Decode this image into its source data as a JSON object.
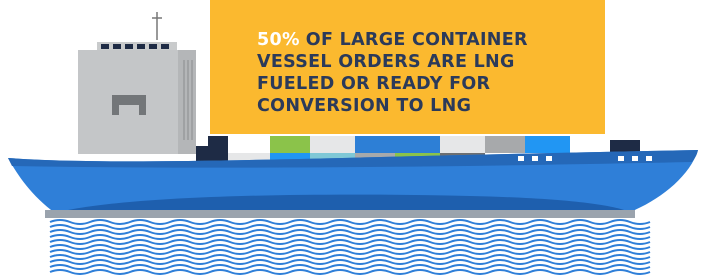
{
  "headline": {
    "highlight": "50%",
    "lines": [
      "OF LARGE CONTAINER",
      "VESSEL ORDERS ARE LNG",
      "FUELED OR READY FOR",
      "CONVERSION TO LNG"
    ]
  }
}
